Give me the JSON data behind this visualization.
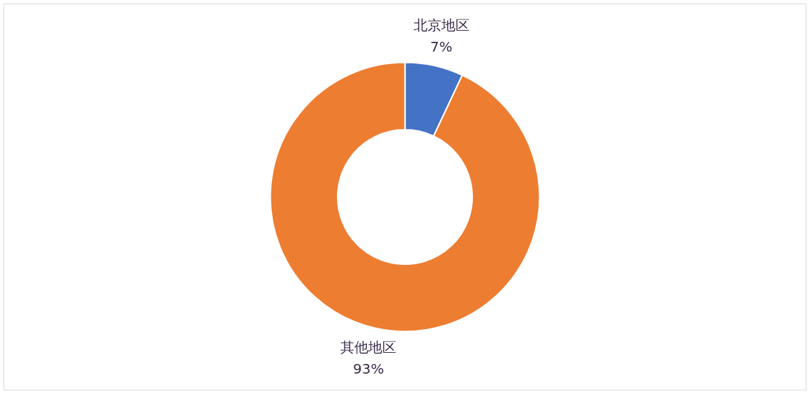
{
  "chart_data": {
    "type": "donut",
    "categories": [
      "北京地区",
      "其他地区"
    ],
    "values": [
      7,
      93
    ],
    "colors": [
      "#4472c4",
      "#ed7d31"
    ],
    "value_labels": [
      "7%",
      "93%"
    ]
  }
}
